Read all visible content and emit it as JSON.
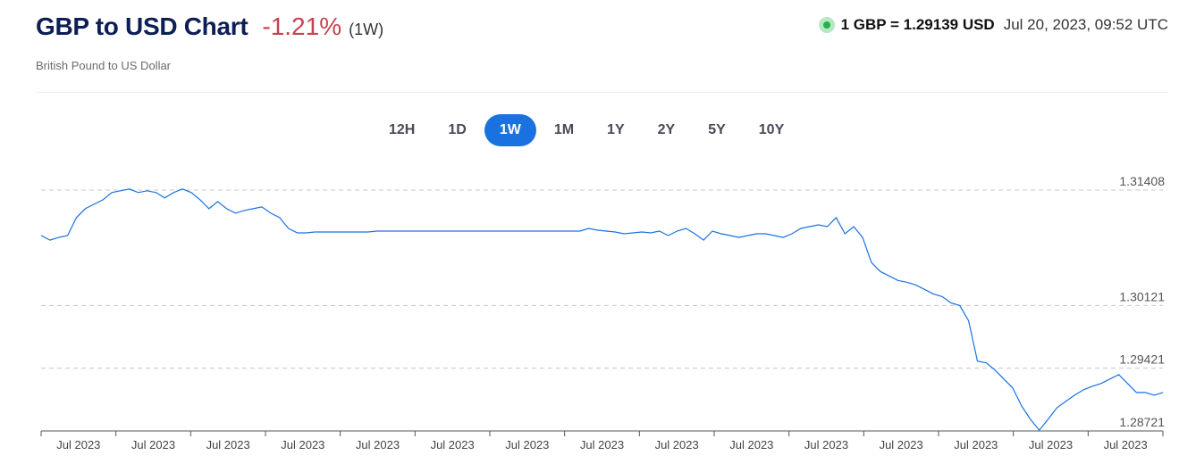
{
  "header": {
    "title": "GBP to USD Chart",
    "change": "-1.21%",
    "period": "(1W)",
    "subtitle": "British Pound to US Dollar",
    "rate": "1 GBP = 1.29139 USD",
    "timestamp": "Jul 20, 2023, 09:52 UTC"
  },
  "periods": [
    {
      "label": "12H",
      "active": false
    },
    {
      "label": "1D",
      "active": false
    },
    {
      "label": "1W",
      "active": true
    },
    {
      "label": "1M",
      "active": false
    },
    {
      "label": "1Y",
      "active": false
    },
    {
      "label": "2Y",
      "active": false
    },
    {
      "label": "5Y",
      "active": false
    },
    {
      "label": "10Y",
      "active": false
    }
  ],
  "colors": {
    "line": "#1a72e0",
    "title": "#0c1e55",
    "negative": "#c8414f",
    "live": "#23b24c",
    "active_button": "#1a72e0"
  },
  "chart_data": {
    "type": "line",
    "title": "GBP to USD Chart",
    "xlabel": "",
    "ylabel": "",
    "y_ticks": [
      1.31408,
      1.30121,
      1.29421,
      1.28721
    ],
    "y_tick_labels": [
      "1.31408",
      "1.30121",
      "1.29421",
      "1.28721"
    ],
    "ylim": [
      1.28721,
      1.31408
    ],
    "x_tick_labels": [
      "Jul 2023",
      "Jul 2023",
      "Jul 2023",
      "Jul 2023",
      "Jul 2023",
      "Jul 2023",
      "Jul 2023",
      "Jul 2023",
      "Jul 2023",
      "Jul 2023",
      "Jul 2023",
      "Jul 2023",
      "Jul 2023",
      "Jul 2023",
      "Jul 2023"
    ],
    "grid": "horizontal dashed",
    "series": [
      {
        "values": [
          1.309,
          1.3085,
          1.3088,
          1.309,
          1.311,
          1.312,
          1.3125,
          1.313,
          1.3138,
          1.314,
          1.3142,
          1.3138,
          1.314,
          1.3138,
          1.3132,
          1.3138,
          1.3142,
          1.3138,
          1.313,
          1.312,
          1.3128,
          1.312,
          1.3115,
          1.3118,
          1.312,
          1.3122,
          1.3115,
          1.311,
          1.3098,
          1.3093,
          1.3093,
          1.3094,
          1.3094,
          1.3094,
          1.3094,
          1.3094,
          1.3094,
          1.3094,
          1.3095,
          1.3095,
          1.3095,
          1.3095,
          1.3095,
          1.3095,
          1.3095,
          1.3095,
          1.3095,
          1.3095,
          1.3095,
          1.3095,
          1.3095,
          1.3095,
          1.3095,
          1.3095,
          1.3095,
          1.3095,
          1.3095,
          1.3095,
          1.3095,
          1.3095,
          1.3095,
          1.3095,
          1.3098,
          1.3096,
          1.3095,
          1.3094,
          1.3092,
          1.3093,
          1.3094,
          1.3093,
          1.3095,
          1.309,
          1.3095,
          1.3098,
          1.3092,
          1.3085,
          1.3095,
          1.3092,
          1.309,
          1.3088,
          1.309,
          1.3092,
          1.3092,
          1.309,
          1.3088,
          1.3092,
          1.3098,
          1.31,
          1.3102,
          1.31,
          1.311,
          1.3092,
          1.31,
          1.3088,
          1.306,
          1.305,
          1.3045,
          1.304,
          1.3038,
          1.3035,
          1.303,
          1.3025,
          1.3022,
          1.3015,
          1.3012,
          1.2995,
          1.295,
          1.2948,
          1.294,
          1.293,
          1.292,
          1.29,
          1.2885,
          1.2873,
          1.2885,
          1.2898,
          1.2905,
          1.2912,
          1.2918,
          1.2922,
          1.2925,
          1.293,
          1.2935,
          1.2925,
          1.2915,
          1.2915,
          1.2912,
          1.2915
        ]
      }
    ]
  }
}
